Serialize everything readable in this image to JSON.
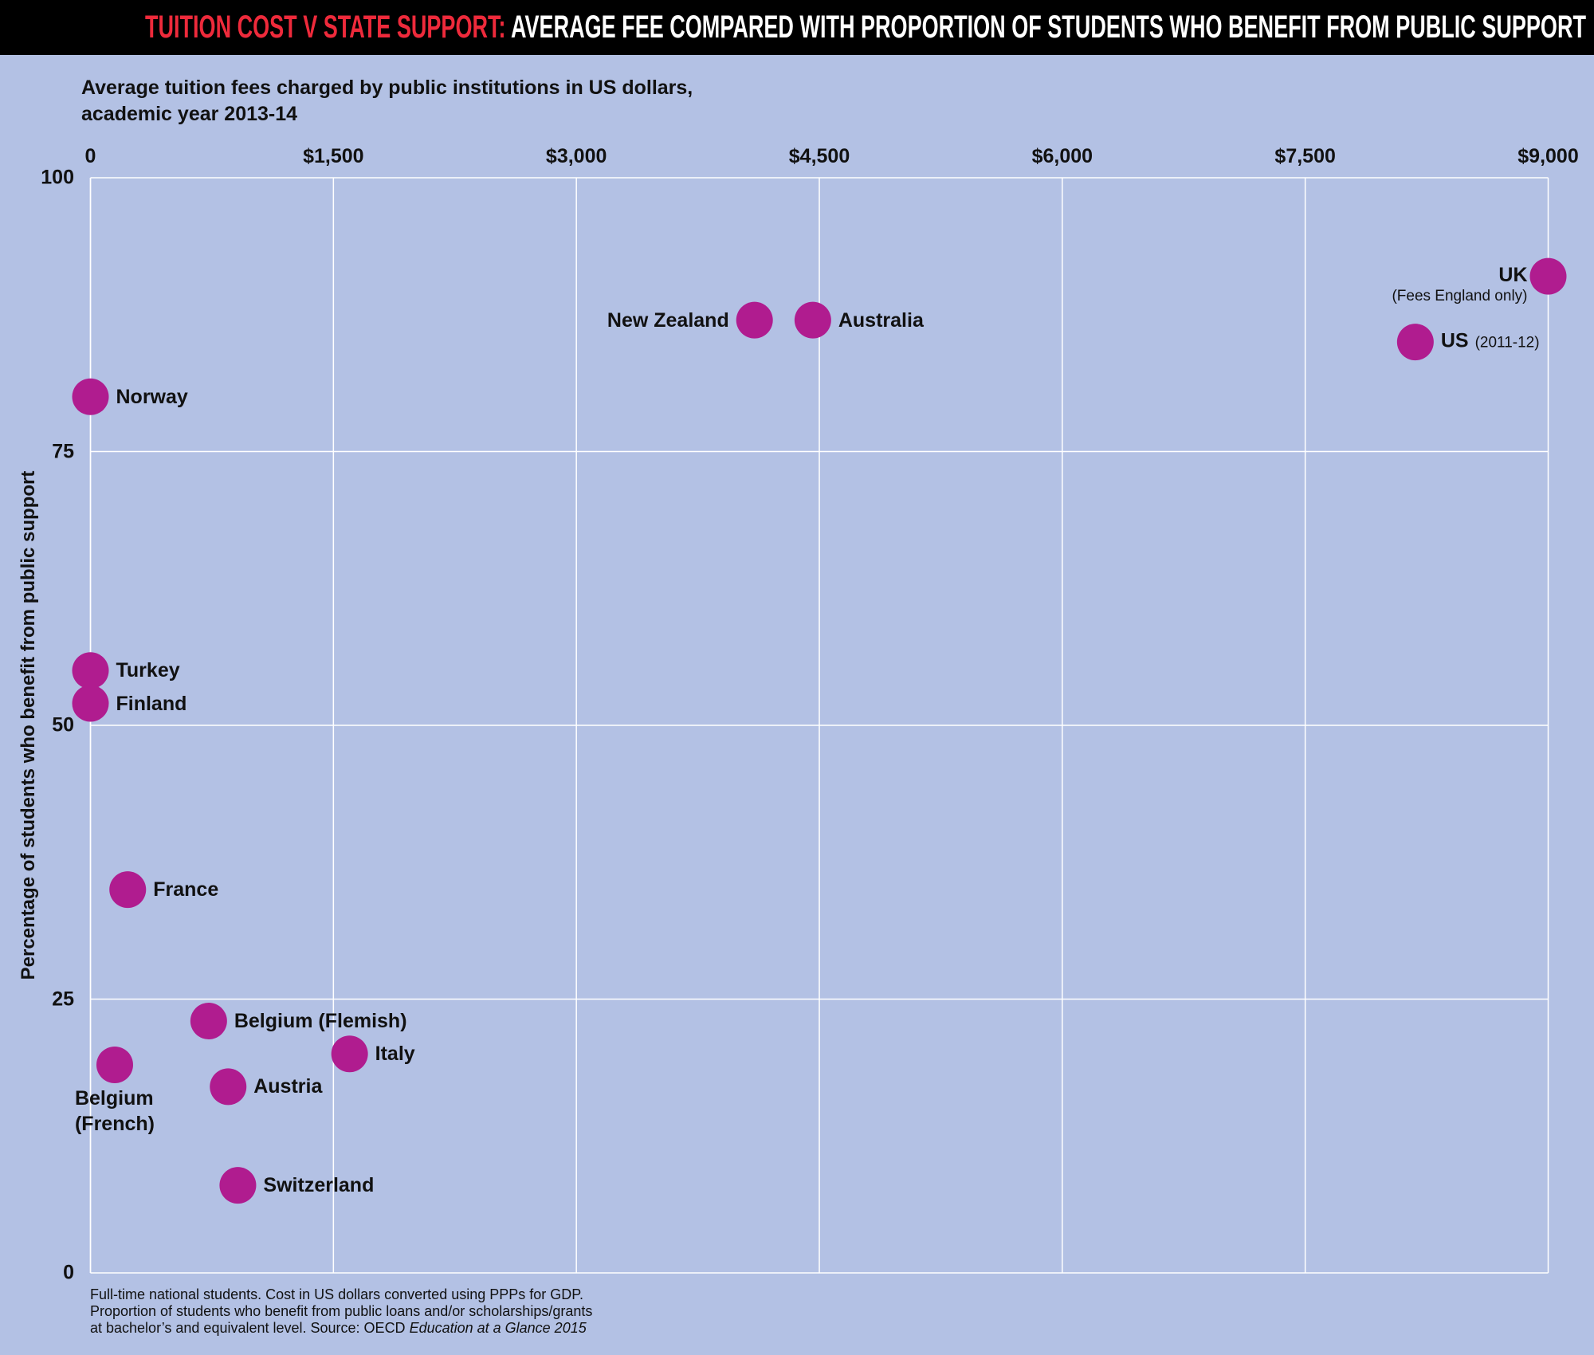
{
  "chart_data": {
    "type": "scatter",
    "title_highlight": "TUITION COST V STATE SUPPORT:",
    "title": " AVERAGE FEE COMPARED  WITH PROPORTION OF STUDENTS WHO BENEFIT FROM PUBLIC SUPPORT",
    "x_label": "Average tuition fees charged by public institutions in US dollars,\nacademic year 2013-14",
    "y_label": "Percentage of students who benefit from public support",
    "footnote": "Full-time national students. Cost in US dollars converted using PPPs for GDP.\nProportion of students who benefit from public loans and/or scholarships/grants\nat bachelor’s and equivalent level. Source: OECD ",
    "footnote_source": "Education at a Glance 2015",
    "labels": [
      "Norway",
      "Turkey",
      "Finland",
      "France",
      "Belgium (Flemish)",
      "Belgium\n(French)",
      "Italy",
      "Austria",
      "Switzerland",
      "New Zealand",
      "Australia",
      "UK",
      "US"
    ],
    "label_notes": [
      null,
      null,
      null,
      null,
      null,
      null,
      null,
      null,
      null,
      null,
      null,
      "(Fees England only)",
      "(2011-12)"
    ],
    "x": [
      0,
      0,
      0,
      230,
      730,
      150,
      1600,
      850,
      910,
      4100,
      4460,
      9000,
      8180
    ],
    "values": [
      80,
      55,
      52,
      35,
      23,
      19,
      20,
      17,
      8,
      87,
      87,
      91,
      85
    ],
    "color": "#b01c8f",
    "xlim": [
      0,
      9000
    ],
    "xticks": [
      0,
      {
        "value": 1500,
        "label": "$1,500"
      },
      {
        "value": 3000,
        "label": "$3,000"
      },
      {
        "value": 4500,
        "label": "$4,500"
      },
      {
        "value": 6000,
        "label": "$6,000"
      },
      {
        "value": 7500,
        "label": "$7,500"
      },
      {
        "value": 9000,
        "label": "$9,000"
      }
    ],
    "ylim": [
      0,
      100
    ],
    "yticks": [
      0,
      25,
      50,
      75,
      100
    ],
    "grid": true
  }
}
